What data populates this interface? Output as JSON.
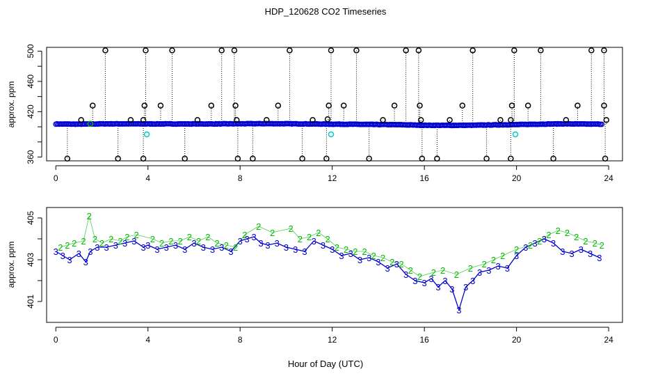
{
  "chart_data": [
    {
      "type": "scatter",
      "title": "HDP_120628  CO2 Timeseries",
      "xlabel": "",
      "ylabel": "approx. ppm",
      "xlim": [
        -0.4,
        24.6
      ],
      "ylim": [
        355,
        505
      ],
      "xticks": [
        0,
        4,
        8,
        12,
        16,
        20,
        24
      ],
      "yticks": [
        360,
        380,
        400,
        420,
        440,
        460,
        480,
        500
      ],
      "ytick_labels": [
        "360",
        "",
        "",
        "420",
        "",
        "460",
        "",
        "500"
      ],
      "colors": {
        "baseline": "#0000cc",
        "outlier": "#000000",
        "cyan": "#00cccc",
        "green": "#00aa00"
      },
      "baseline": {
        "x": [
          0.0,
          1.0,
          2.0,
          3.0,
          4.0,
          5.0,
          6.0,
          7.0,
          8.0,
          9.0,
          10.0,
          11.0,
          12.0,
          13.0,
          14.0,
          15.0,
          16.0,
          17.0,
          18.0,
          19.0,
          20.0,
          21.0,
          22.0,
          23.0,
          23.7
        ],
        "y": [
          403.7,
          403.5,
          403.9,
          403.9,
          403.8,
          403.8,
          403.8,
          403.8,
          404.0,
          404.1,
          404.0,
          403.8,
          403.5,
          403.3,
          403.0,
          402.7,
          402.0,
          401.9,
          402.0,
          402.5,
          402.9,
          403.5,
          403.9,
          403.6,
          403.5
        ]
      },
      "outliers_high": [
        2.15,
        3.9,
        5.05,
        7.2,
        7.75,
        10.15,
        11.95,
        13.05,
        15.2,
        15.75,
        18.1,
        19.9,
        21.05,
        23.25,
        23.8
      ],
      "outliers_low": [
        0.5,
        2.7,
        3.8,
        5.6,
        7.9,
        8.55,
        10.7,
        11.75,
        13.6,
        15.9,
        16.55,
        18.7,
        19.75,
        21.6,
        23.85
      ],
      "outliers_mid": [
        {
          "x": 1.1,
          "y": 409
        },
        {
          "x": 1.6,
          "y": 428
        },
        {
          "x": 3.25,
          "y": 409
        },
        {
          "x": 3.85,
          "y": 428
        },
        {
          "x": 3.8,
          "y": 409
        },
        {
          "x": 4.55,
          "y": 428
        },
        {
          "x": 6.15,
          "y": 409
        },
        {
          "x": 6.75,
          "y": 428
        },
        {
          "x": 7.8,
          "y": 428
        },
        {
          "x": 7.85,
          "y": 409
        },
        {
          "x": 9.15,
          "y": 409
        },
        {
          "x": 9.65,
          "y": 428
        },
        {
          "x": 11.15,
          "y": 409
        },
        {
          "x": 11.85,
          "y": 428
        },
        {
          "x": 11.8,
          "y": 410
        },
        {
          "x": 12.5,
          "y": 428
        },
        {
          "x": 14.2,
          "y": 409
        },
        {
          "x": 14.7,
          "y": 428
        },
        {
          "x": 15.8,
          "y": 428
        },
        {
          "x": 15.85,
          "y": 409
        },
        {
          "x": 17.1,
          "y": 409
        },
        {
          "x": 17.65,
          "y": 428
        },
        {
          "x": 19.3,
          "y": 409
        },
        {
          "x": 19.8,
          "y": 428
        },
        {
          "x": 19.75,
          "y": 409
        },
        {
          "x": 20.5,
          "y": 428
        },
        {
          "x": 22.15,
          "y": 409
        },
        {
          "x": 22.65,
          "y": 428
        },
        {
          "x": 23.9,
          "y": 409
        },
        {
          "x": 23.8,
          "y": 428
        }
      ],
      "cyan_points": [
        {
          "x": 3.95,
          "y": 390
        },
        {
          "x": 11.95,
          "y": 390
        },
        {
          "x": 19.95,
          "y": 390
        }
      ],
      "green_points": [
        {
          "x": 1.5,
          "y": 404
        }
      ]
    },
    {
      "type": "scatter",
      "xlabel": "Hour of Day (UTC)",
      "ylabel": "approx. ppm",
      "xlim": [
        -0.4,
        24.6
      ],
      "ylim": [
        400.0,
        405.5
      ],
      "xticks": [
        0,
        4,
        8,
        12,
        16,
        20,
        24
      ],
      "yticks": [
        401,
        402,
        403,
        404,
        405
      ],
      "ytick_labels": [
        "401",
        "",
        "403",
        "",
        "405"
      ],
      "point_labels": {
        "series_2": "2",
        "series_3": "3"
      },
      "colors": {
        "series_2": "#00bb00",
        "series_3": "#0000cc",
        "line": "#0000cc"
      },
      "series": [
        {
          "label": "3",
          "x": [
            0.0,
            0.3,
            0.6,
            1.0,
            1.3,
            1.5,
            1.8,
            2.2,
            2.6,
            3.0,
            3.4,
            3.8,
            4.0,
            4.4,
            4.8,
            5.2,
            5.6,
            6.0,
            6.4,
            6.8,
            7.2,
            7.6,
            8.0,
            8.3,
            8.6,
            8.9,
            9.2,
            9.6,
            10.0,
            10.4,
            10.8,
            11.2,
            11.6,
            12.0,
            12.4,
            12.8,
            13.2,
            13.6,
            14.0,
            14.4,
            14.8,
            15.2,
            15.6,
            16.0,
            16.3,
            16.6,
            16.9,
            17.2,
            17.5,
            17.8,
            18.1,
            18.4,
            18.8,
            19.2,
            19.6,
            20.0,
            20.4,
            20.8,
            21.2,
            21.6,
            22.0,
            22.4,
            22.8,
            23.2,
            23.6
          ],
          "y": [
            403.4,
            403.2,
            403.0,
            403.3,
            402.9,
            403.4,
            403.6,
            403.6,
            403.7,
            403.8,
            403.9,
            403.6,
            403.7,
            403.5,
            403.6,
            403.7,
            403.5,
            403.8,
            403.6,
            403.5,
            403.6,
            403.4,
            403.9,
            404.0,
            404.1,
            403.8,
            403.7,
            403.8,
            403.6,
            403.5,
            403.4,
            403.9,
            403.7,
            403.5,
            403.2,
            403.3,
            403.0,
            403.1,
            402.9,
            402.6,
            402.8,
            402.3,
            402.0,
            401.9,
            402.1,
            401.7,
            402.0,
            401.6,
            400.6,
            401.7,
            402.0,
            402.4,
            402.5,
            402.7,
            402.6,
            403.2,
            403.6,
            403.8,
            404.0,
            403.8,
            403.4,
            403.3,
            403.5,
            403.3,
            403.1
          ]
        },
        {
          "label": "2",
          "x": [
            0.2,
            0.5,
            0.8,
            1.2,
            1.45,
            1.7,
            2.0,
            2.4,
            2.8,
            3.1,
            3.5,
            4.2,
            4.6,
            5.0,
            5.4,
            5.8,
            6.2,
            6.6,
            7.0,
            7.4,
            7.8,
            8.2,
            8.8,
            9.4,
            10.2,
            10.6,
            11.0,
            11.4,
            11.8,
            12.2,
            12.6,
            13.0,
            13.4,
            13.8,
            14.2,
            14.6,
            15.0,
            15.4,
            15.8,
            16.4,
            16.8,
            17.4,
            18.0,
            18.6,
            19.0,
            19.4,
            20.0,
            20.6,
            21.0,
            21.4,
            21.8,
            22.2,
            22.6,
            23.0,
            23.4,
            23.7
          ],
          "y": [
            403.6,
            403.7,
            403.8,
            403.9,
            405.1,
            404.0,
            403.8,
            404.0,
            403.9,
            404.1,
            404.2,
            404.0,
            403.8,
            403.9,
            403.9,
            404.1,
            403.9,
            404.1,
            403.8,
            403.7,
            403.6,
            404.2,
            404.6,
            404.3,
            404.5,
            404.0,
            404.1,
            404.3,
            404.0,
            403.6,
            403.5,
            403.4,
            403.4,
            403.2,
            403.1,
            402.9,
            402.8,
            402.5,
            402.2,
            402.4,
            402.5,
            402.3,
            402.6,
            402.8,
            403.0,
            403.2,
            403.5,
            403.7,
            403.9,
            404.2,
            404.4,
            404.3,
            404.1,
            403.9,
            403.8,
            403.7
          ]
        }
      ]
    }
  ]
}
